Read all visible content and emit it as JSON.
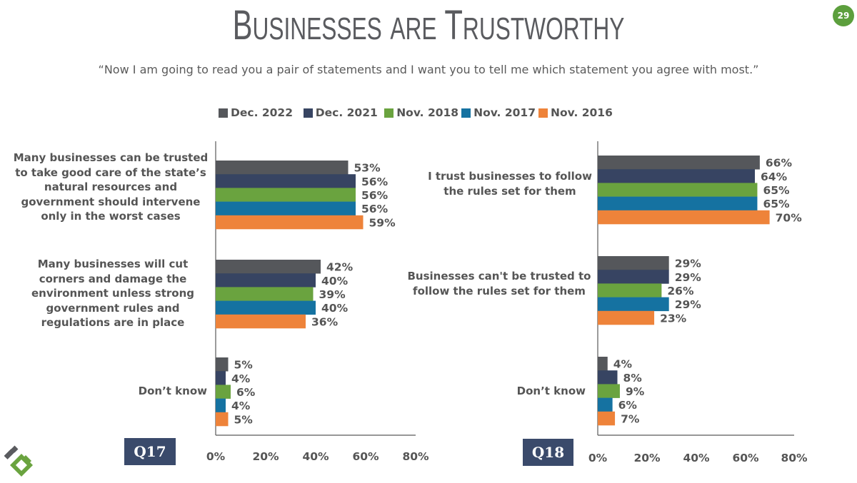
{
  "header": {
    "title_parts": [
      {
        "big": "B",
        "small": "USINESSES"
      },
      {
        "big": "",
        "small": "ARE"
      },
      {
        "big": "T",
        "small": "RUSTWORTHY"
      }
    ],
    "title": "Businesses are Trustworthy",
    "page_number": "29",
    "subtitle": "“Now I am going to read you a pair of statements and I want you to tell me which statement you agree with most.”"
  },
  "legend": [
    {
      "label": "Dec. 2022",
      "color": "#55575b"
    },
    {
      "label": "Dec. 2021",
      "color": "#374462"
    },
    {
      "label": "Nov. 2018",
      "color": "#6aa33f"
    },
    {
      "label": "Nov. 2017",
      "color": "#1572a1"
    },
    {
      "label": "Nov. 2016",
      "color": "#ee833a"
    }
  ],
  "chart_data": [
    {
      "type": "bar",
      "orientation": "horizontal",
      "question_badge": "Q17",
      "categories": [
        "Many businesses can be trusted to take good care of the state’s natural resources and government should intervene only in the worst cases",
        "Many businesses will cut corners and damage the environment unless strong government rules and regulations are in place",
        "Don’t know"
      ],
      "series": [
        {
          "name": "Dec. 2022",
          "values": [
            53,
            42,
            5
          ]
        },
        {
          "name": "Dec. 2021",
          "values": [
            56,
            40,
            4
          ]
        },
        {
          "name": "Nov. 2018",
          "values": [
            56,
            39,
            6
          ]
        },
        {
          "name": "Nov. 2017",
          "values": [
            56,
            40,
            4
          ]
        },
        {
          "name": "Nov. 2016",
          "values": [
            59,
            36,
            5
          ]
        }
      ],
      "xlim": [
        0,
        80
      ],
      "xticks": [
        "0%",
        "20%",
        "40%",
        "60%",
        "80%"
      ],
      "value_suffix": "%",
      "grid": false,
      "legend": "top"
    },
    {
      "type": "bar",
      "orientation": "horizontal",
      "question_badge": "Q18",
      "categories": [
        "I trust businesses to follow the rules set for them",
        "Businesses can't be trusted to follow the rules set for them",
        "Don’t know"
      ],
      "series": [
        {
          "name": "Dec. 2022",
          "values": [
            66,
            29,
            4
          ]
        },
        {
          "name": "Dec. 2021",
          "values": [
            64,
            29,
            8
          ]
        },
        {
          "name": "Nov. 2018",
          "values": [
            65,
            26,
            9
          ]
        },
        {
          "name": "Nov. 2017",
          "values": [
            65,
            29,
            6
          ]
        },
        {
          "name": "Nov. 2016",
          "values": [
            70,
            23,
            7
          ]
        }
      ],
      "xlim": [
        0,
        80
      ],
      "xticks": [
        "0%",
        "20%",
        "40%",
        "60%",
        "80%"
      ],
      "value_suffix": "%",
      "grid": false,
      "legend": "top"
    }
  ]
}
